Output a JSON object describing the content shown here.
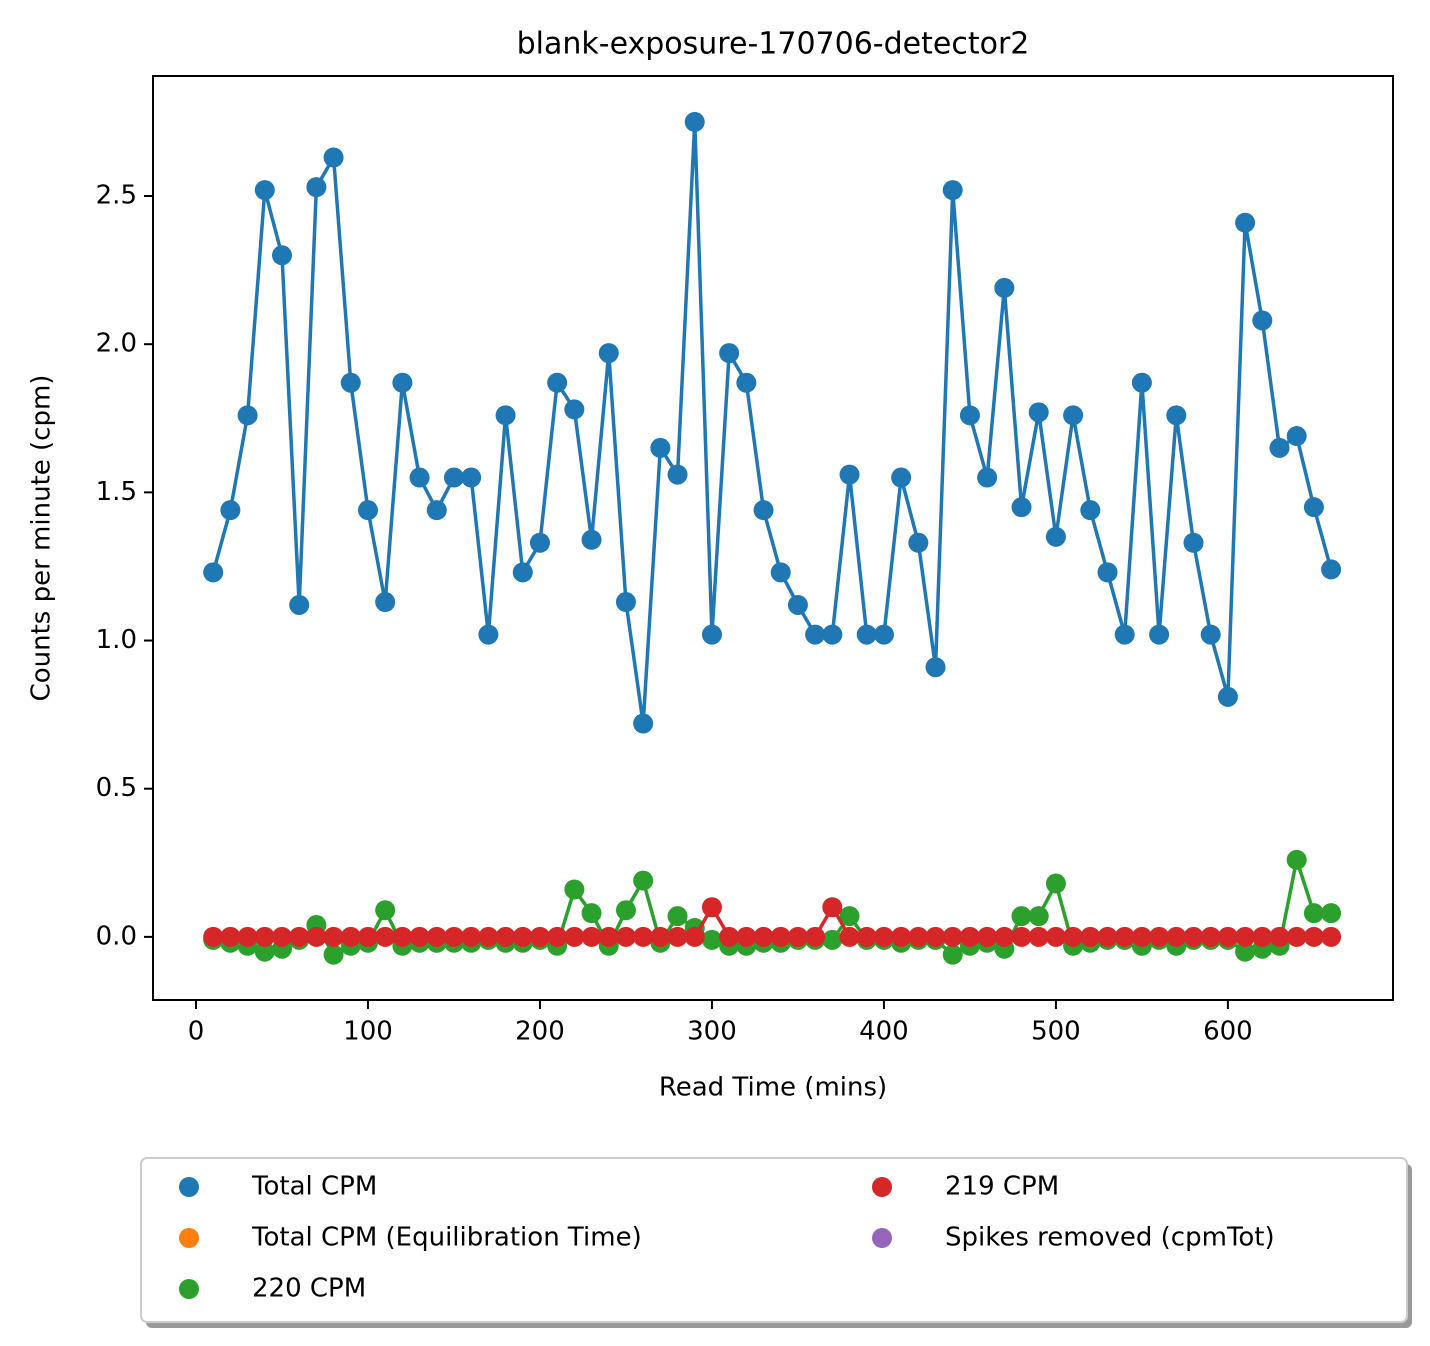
{
  "chart_data": {
    "type": "line",
    "title": "blank-exposure-170706-detector2",
    "xlabel": "Read Time (mins)",
    "ylabel": "Counts per minute (cpm)",
    "x": [
      10,
      20,
      30,
      40,
      50,
      60,
      70,
      80,
      90,
      100,
      110,
      120,
      130,
      140,
      150,
      160,
      170,
      180,
      190,
      200,
      210,
      220,
      230,
      240,
      250,
      260,
      270,
      280,
      290,
      300,
      310,
      320,
      330,
      340,
      350,
      360,
      370,
      380,
      390,
      400,
      410,
      420,
      430,
      440,
      450,
      460,
      470,
      480,
      490,
      500,
      510,
      520,
      530,
      540,
      550,
      560,
      570,
      580,
      590,
      600,
      610,
      620,
      630,
      640,
      650,
      660
    ],
    "series": [
      {
        "name": "Total CPM",
        "color": "#1f77b4",
        "values": [
          1.23,
          1.44,
          1.76,
          2.52,
          2.3,
          1.12,
          2.53,
          2.63,
          1.87,
          1.44,
          1.13,
          1.87,
          1.55,
          1.44,
          1.55,
          1.55,
          1.02,
          1.76,
          1.23,
          1.33,
          1.87,
          1.78,
          1.34,
          1.97,
          1.13,
          0.72,
          1.65,
          1.56,
          2.75,
          1.02,
          1.97,
          1.87,
          1.44,
          1.23,
          1.12,
          1.02,
          1.02,
          1.56,
          1.02,
          1.02,
          1.55,
          1.33,
          0.91,
          2.52,
          1.76,
          1.55,
          2.19,
          1.45,
          1.77,
          1.35,
          1.76,
          1.44,
          1.23,
          1.02,
          1.87,
          1.02,
          1.76,
          1.33,
          1.02,
          0.81,
          2.41,
          2.08,
          1.65,
          1.69,
          1.45,
          1.24
        ]
      },
      {
        "name": "Total CPM (Equilibration Time)",
        "color": "#ff7f0e"
      },
      {
        "name": "220 CPM",
        "color": "#2ca02c",
        "values": [
          -0.01,
          -0.02,
          -0.03,
          -0.05,
          -0.04,
          -0.01,
          0.04,
          -0.06,
          -0.03,
          -0.02,
          0.09,
          -0.03,
          -0.02,
          -0.02,
          -0.02,
          -0.02,
          -0.01,
          -0.02,
          -0.02,
          -0.01,
          -0.03,
          0.16,
          0.08,
          -0.03,
          0.09,
          0.19,
          -0.02,
          0.07,
          0.03,
          -0.01,
          -0.03,
          -0.03,
          -0.02,
          -0.02,
          -0.01,
          -0.01,
          -0.01,
          0.07,
          -0.01,
          -0.01,
          -0.02,
          -0.01,
          -0.01,
          -0.06,
          -0.03,
          -0.02,
          -0.04,
          0.07,
          0.07,
          0.18,
          -0.03,
          -0.02,
          -0.01,
          -0.01,
          -0.03,
          -0.01,
          -0.03,
          -0.01,
          -0.01,
          -0.01,
          -0.05,
          -0.04,
          -0.03,
          0.26,
          0.08,
          0.08
        ]
      },
      {
        "name": "219 CPM",
        "color": "#d62728",
        "values": [
          0,
          0,
          0,
          0,
          0,
          0,
          0,
          0,
          0,
          0,
          0,
          0,
          0,
          0,
          0,
          0,
          0,
          0,
          0,
          0,
          0,
          0,
          0,
          0,
          0,
          0,
          0,
          0,
          0,
          0.1,
          0,
          0,
          0,
          0,
          0,
          0,
          0.1,
          0,
          0,
          0,
          0,
          0,
          0,
          0,
          0,
          0,
          0,
          0,
          0,
          0,
          0,
          0,
          0,
          0,
          0,
          0,
          0,
          0,
          0,
          0,
          0,
          0,
          0,
          0,
          0,
          0
        ]
      },
      {
        "name": "Spikes removed (cpmTot)",
        "color": "#9467bd"
      }
    ],
    "xlim": [
      -25,
      696
    ],
    "ylim": [
      -0.213,
      2.905
    ],
    "xticks": [
      0,
      100,
      200,
      300,
      400,
      500,
      600
    ],
    "yticks": [
      {
        "value": 0,
        "label": "0.0"
      },
      0.5,
      {
        "value": 1,
        "label": "1.0"
      },
      1.5,
      {
        "value": 2,
        "label": "2.0"
      },
      2.5
    ],
    "legend": "lower center"
  }
}
